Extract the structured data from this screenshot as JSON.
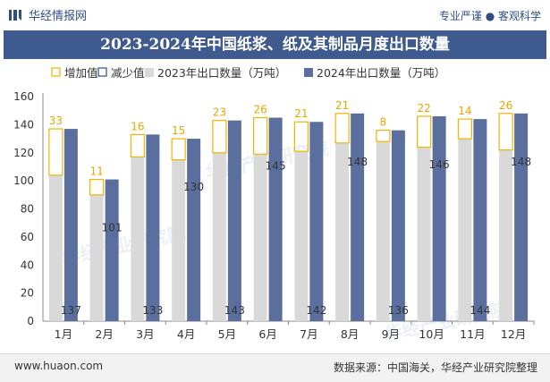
{
  "header": {
    "site_name": "华经情报网",
    "tagline": "专业严谨 ● 客观科学"
  },
  "title": "2023-2024年中国纸浆、纸及其制品月度出口数量",
  "footer": {
    "website": "www.huaon.com",
    "source": "数据来源：中国海关，华经产业研究院整理"
  },
  "watermark": "华经产业研究院",
  "chart_data": {
    "type": "bar",
    "categories": [
      "1月",
      "2月",
      "3月",
      "4月",
      "5月",
      "6月",
      "7月",
      "8月",
      "9月",
      "10月",
      "11月",
      "12月"
    ],
    "series": [
      {
        "name": "2023年出口数量（万吨）",
        "values": [
          104,
          90,
          117,
          115,
          120,
          119,
          121,
          127,
          128,
          124,
          130,
          122
        ]
      },
      {
        "name": "2024年出口数量（万吨）",
        "values": [
          137,
          101,
          133,
          130,
          143,
          145,
          142,
          148,
          136,
          146,
          144,
          148
        ]
      }
    ],
    "diff_labels": [
      "33",
      "11",
      "16",
      "15",
      "23",
      "26",
      "21",
      "21",
      "8",
      "22",
      "14",
      "26"
    ],
    "legend": [
      {
        "name": "增加值",
        "style": "outline",
        "color": "#f0b400"
      },
      {
        "name": "减少值",
        "style": "outline",
        "color": "#2f4e86"
      },
      {
        "name": "2023年出口数量（万吨）",
        "style": "fill",
        "color": "#d9d9d9"
      },
      {
        "name": "2024年出口数量（万吨）",
        "style": "fill",
        "color": "#5b6f9f"
      }
    ],
    "ylim": [
      0,
      160
    ],
    "yticks": [
      "0",
      "20",
      "40",
      "60",
      "80",
      "100",
      "120",
      "140",
      "160"
    ],
    "colors": {
      "y2023": "#d9d9d9",
      "y2024": "#5b6f9f",
      "increase": "#f0b400",
      "decrease": "#2f4e86",
      "label_increase": "#e6a700"
    },
    "legend_position": "top"
  }
}
